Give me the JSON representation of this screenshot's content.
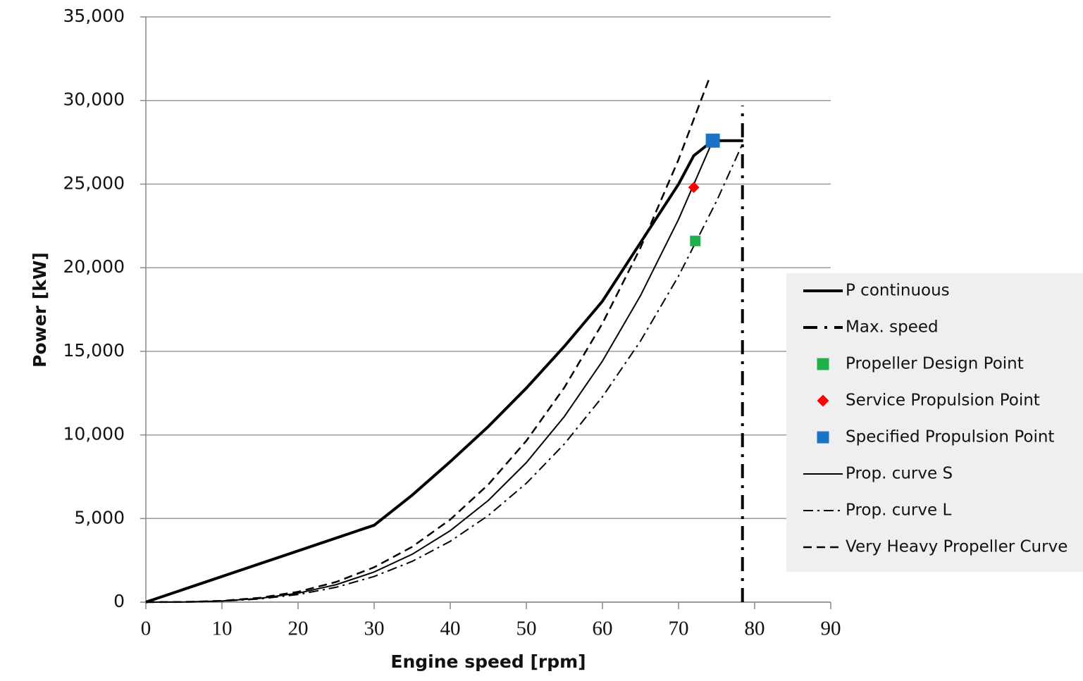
{
  "chart_data": {
    "type": "line",
    "x_label": "Engine speed [rpm]",
    "y_label": "Power [kW]",
    "xlim": [
      0,
      90
    ],
    "xticks": [
      0,
      10,
      20,
      30,
      40,
      50,
      60,
      70,
      80,
      90
    ],
    "ylim": [
      0,
      35000
    ],
    "yticks": [
      0,
      {
        "value": 5000,
        "label": "5,000"
      },
      {
        "value": 10000,
        "label": "10,000"
      },
      {
        "value": 15000,
        "label": "15,000"
      },
      {
        "value": 20000,
        "label": "20,000"
      },
      {
        "value": 25000,
        "label": "25,000"
      },
      {
        "value": 30000,
        "label": "30,000"
      },
      {
        "value": 35000,
        "label": "35,000"
      }
    ],
    "grid": true,
    "legend": "right",
    "series": [
      {
        "name": "P continuous",
        "kind": "line",
        "style": "solid",
        "width": 4,
        "color": "#000000",
        "x": [
          0,
          30,
          35,
          40,
          45,
          50,
          55,
          60,
          65,
          70,
          72,
          74.5,
          78.5
        ],
        "values": [
          0,
          4600,
          6400,
          8400,
          10500,
          12800,
          15300,
          18000,
          21500,
          25000,
          26700,
          27600,
          27600
        ]
      },
      {
        "name": "Max. speed",
        "kind": "line",
        "style": "dashdot-heavy",
        "width": 4,
        "color": "#000000",
        "x": [
          78.4,
          78.4
        ],
        "values": [
          0,
          29700
        ]
      },
      {
        "name": "Propeller Design Point",
        "kind": "scatter",
        "marker": "square",
        "size": 15,
        "color": "#1fb04c",
        "x": [
          72.2
        ],
        "values": [
          21600
        ]
      },
      {
        "name": "Service Propulsion Point",
        "kind": "scatter",
        "marker": "diamond",
        "size": 16,
        "color": "#ff0000",
        "x": [
          72
        ],
        "values": [
          24800
        ]
      },
      {
        "name": "Specified Propulsion Point",
        "kind": "scatter",
        "marker": "square",
        "size": 20,
        "color": "#1a73c4",
        "x": [
          74.5
        ],
        "values": [
          27600
        ]
      },
      {
        "name": "Prop. curve S",
        "kind": "line",
        "style": "solid",
        "width": 2,
        "color": "#000000",
        "x": [
          0,
          5,
          10,
          15,
          20,
          25,
          30,
          35,
          40,
          45,
          50,
          55,
          60,
          65,
          70,
          74.5
        ],
        "values": [
          0,
          8,
          67,
          225,
          534,
          1043,
          1802,
          2862,
          4272,
          6082,
          8344,
          11105,
          14418,
          18331,
          22895,
          27600
        ]
      },
      {
        "name": "Prop. curve L",
        "kind": "line",
        "style": "dashdot",
        "width": 2,
        "color": "#000000",
        "x": [
          0,
          5,
          10,
          15,
          20,
          25,
          30,
          35,
          40,
          45,
          50,
          55,
          60,
          65,
          70,
          75,
          78.4
        ],
        "values": [
          0,
          7,
          57,
          192,
          455,
          888,
          1535,
          2438,
          3639,
          5181,
          7107,
          9460,
          12282,
          15615,
          19503,
          23987,
          27400
        ]
      },
      {
        "name": "Very Heavy Propeller Curve",
        "kind": "line",
        "style": "dash",
        "width": 2.5,
        "color": "#000000",
        "x": [
          0,
          5,
          10,
          15,
          20,
          25,
          30,
          35,
          40,
          45,
          50,
          55,
          60,
          65,
          70,
          74.1
        ],
        "values": [
          0,
          10,
          77,
          260,
          617,
          1206,
          2084,
          3309,
          4939,
          7033,
          9647,
          12840,
          16670,
          21195,
          26471,
          31400
        ]
      }
    ]
  }
}
